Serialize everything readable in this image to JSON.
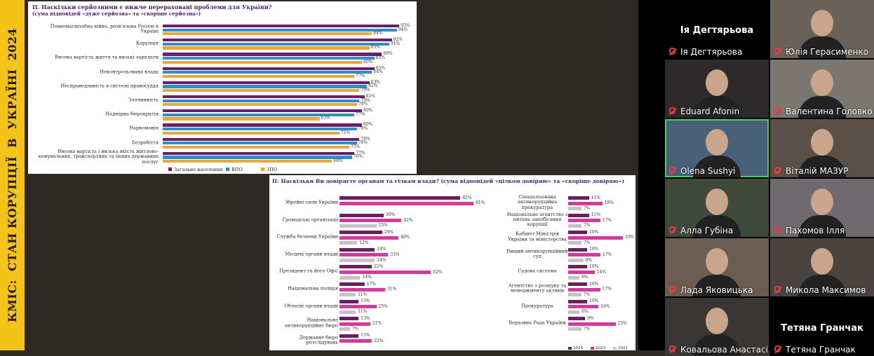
{
  "sidebar_title": "КМІС:  СТАН КОРУПЦІЇ  В  УКРАЇНІ  2024",
  "slides": [
    {
      "title": "II. Наскільки серйозними є нижче перераховані проблеми для України?",
      "subtitle": "(сума відповідей «дуже серйозна» та «скоріше серйозна»)",
      "categories": [
        "Повномасштабна війна, розв'язана Росією в Україні",
        "Корупція",
        "Висока вартість життя та низькі зарплати",
        "Неконтрольована влада",
        "Несправедливість в системі правосуддя",
        "Злочинність",
        "Надмірна бюрократія",
        "Наркоманія",
        "Безробіття",
        "Висока вартість і низька якість житлово-комунальних, транспортних та інших державних послуг"
      ],
      "series": [
        {
          "name": "Загальне населення",
          "color": "#6a1f6e",
          "values": [
            95,
            92,
            88,
            85,
            83,
            81,
            80,
            80,
            79,
            77
          ],
          "value_labels": [
            "95%",
            "92%",
            "88%",
            "85%",
            "83%",
            "81%",
            "80%",
            "80%",
            "79%",
            "77%"
          ]
        },
        {
          "name": "ВПО",
          "color": "#2f8fc4",
          "values": [
            94,
            91,
            85,
            84,
            82,
            79,
            77,
            78,
            78,
            76
          ],
          "value_labels": [
            "94%",
            "91%",
            "85%",
            "84%",
            "82%",
            "79%",
            "77%",
            "78%",
            "78%",
            "76%"
          ]
        },
        {
          "name": "ЗПО",
          "color": "#e9a73e",
          "values": [
            84,
            83,
            80,
            77,
            79,
            78,
            63,
            71,
            75,
            68
          ],
          "value_labels": [
            "84%",
            "83%",
            "80%",
            "77%",
            "79%",
            "78%",
            "63%",
            "71%",
            "75%",
            "68%"
          ]
        }
      ]
    },
    {
      "title": "II: Наскільки Ви довіряєте органам та гілкам влади? (сума відповідей «цілком довіряю» та «скоріше довіряю»)",
      "legend": [
        {
          "name": "2024",
          "color": "#6b1f5e"
        },
        {
          "name": "2023",
          "color": "#d4399c"
        },
        {
          "name": "2021",
          "color": "#c4c4c4"
        }
      ],
      "panels": [
        {
          "categories": [
            "Збройні сили України",
            "Громадські організації",
            "Служба безпеки України",
            "Місцеві органи влади",
            "Президент та його Офіс",
            "Національна поліція",
            "Обласні органи влади",
            "Національне антикорупційне бюро",
            "Державне бюро розслідувань"
          ],
          "series": [
            {
              "values": [
                82,
                30,
                29,
                24,
                22,
                17,
                13,
                13,
                13
              ],
              "value_labels": [
                "82%",
                "30%",
                "29%",
                "24%",
                "22%",
                "17%",
                "13%",
                "13%",
                "13%"
              ]
            },
            {
              "values": [
                91,
                42,
                40,
                33,
                62,
                31,
                25,
                21,
                22
              ],
              "value_labels": [
                "91%",
                "42%",
                "40%",
                "33%",
                "62%",
                "31%",
                "25%",
                "21%",
                "22%"
              ]
            },
            {
              "values": [
                null,
                25,
                12,
                24,
                14,
                11,
                11,
                7,
                null
              ],
              "value_labels": [
                null,
                "25%",
                "12%",
                "24%",
                "14%",
                "11%",
                "11%",
                "7%",
                null
              ]
            }
          ]
        },
        {
          "categories": [
            "Спеціалізована антикорупційна прокуратура",
            "Національне агентство з питань запобігання корупції",
            "Кабінет Міністрів України та міністерства",
            "Вищий антикорупційний суд",
            "Судова система",
            "Агентство з розшуку та менеджменту активів",
            "Прокуратура",
            "Верховна Рада України"
          ],
          "series": [
            {
              "values": [
                11,
                11,
                10,
                10,
                10,
                10,
                10,
                9
              ],
              "value_labels": [
                "11%",
                "11%",
                "10%",
                "10%",
                "10%",
                "10%",
                "10%",
                "9%"
              ]
            },
            {
              "values": [
                18,
                17,
                29,
                17,
                14,
                17,
                16,
                25
              ],
              "value_labels": [
                "18%",
                "17%",
                "29%",
                "17%",
                "14%",
                "17%",
                "16%",
                "25%"
              ]
            },
            {
              "values": [
                7,
                7,
                7,
                8,
                6,
                7,
                6,
                7
              ],
              "value_labels": [
                "7%",
                "7%",
                "7%",
                "8%",
                "6%",
                "7%",
                "6%",
                "7%"
              ]
            }
          ]
        }
      ]
    }
  ],
  "participants": [
    {
      "name": "Ія Дегтярьова",
      "avatar_text": "Ія Дегтярьова"
    },
    {
      "name": "Юлія Герасименко"
    },
    {
      "name": "Eduard Afonin"
    },
    {
      "name": "Валентина Головко"
    },
    {
      "name": "Olena Sushyi",
      "speaking": true
    },
    {
      "name": "Віталій МАЗУР"
    },
    {
      "name": "Алла Губіна"
    },
    {
      "name": "Пахомов Ілля"
    },
    {
      "name": "Лада Яковицька"
    },
    {
      "name": "Микола Максимов"
    },
    {
      "name": "Ковальова Анастасія"
    },
    {
      "name": "Тетяна Гранчак",
      "avatar_text": "Тетяна Гранчак"
    }
  ]
}
